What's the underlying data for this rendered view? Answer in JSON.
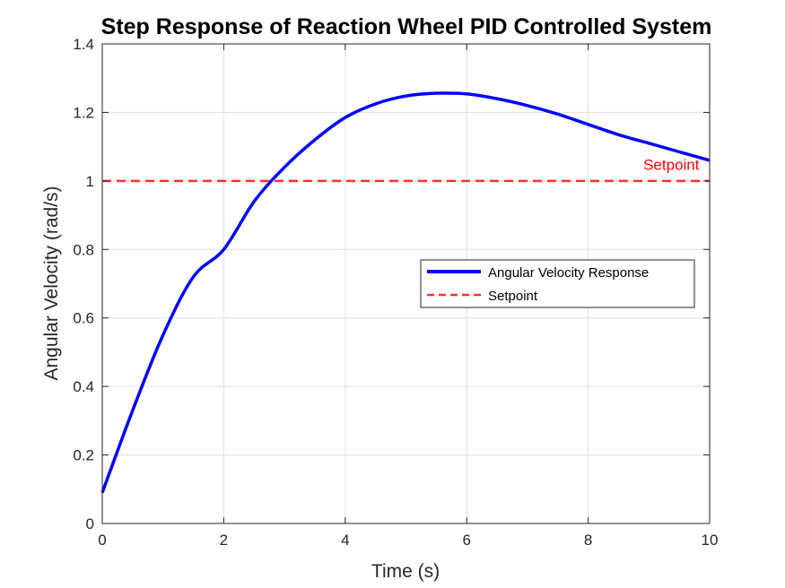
{
  "chart_data": {
    "type": "line",
    "title": "Step Response of Reaction Wheel PID Controlled System",
    "xlabel": "Time (s)",
    "ylabel": "Angular Velocity (rad/s)",
    "xlim": [
      0,
      10
    ],
    "ylim": [
      0,
      1.4
    ],
    "xticks": [
      0,
      2,
      4,
      6,
      8,
      10
    ],
    "yticks": [
      0,
      0.2,
      0.4,
      0.6,
      0.8,
      1,
      1.2,
      1.4
    ],
    "xtick_labels": [
      "0",
      "2",
      "4",
      "6",
      "8",
      "10"
    ],
    "ytick_labels": [
      "0",
      "0.2",
      "0.4",
      "0.6",
      "0.8",
      "1",
      "1.2",
      "1.4"
    ],
    "grid": true,
    "legend_position": "center-right",
    "series": [
      {
        "name": "Angular Velocity Response",
        "color": "#0000ff",
        "style": "solid",
        "x": [
          0,
          0.5,
          1,
          1.5,
          2,
          2.5,
          3,
          3.5,
          4,
          4.5,
          5,
          5.5,
          6,
          6.5,
          7,
          7.5,
          8,
          8.5,
          9,
          9.5,
          10
        ],
        "y": [
          0.09,
          0.33,
          0.55,
          0.72,
          0.8,
          0.94,
          1.04,
          1.12,
          1.185,
          1.225,
          1.248,
          1.256,
          1.254,
          1.24,
          1.22,
          1.195,
          1.165,
          1.135,
          1.11,
          1.085,
          1.06
        ]
      },
      {
        "name": "Setpoint",
        "color": "#ff0000",
        "style": "dashed",
        "x": [
          0,
          10
        ],
        "y": [
          1,
          1
        ]
      }
    ],
    "annotations": [
      {
        "text": "Setpoint",
        "x": 9.8,
        "y": 1.04,
        "color": "#ff0000"
      }
    ]
  }
}
